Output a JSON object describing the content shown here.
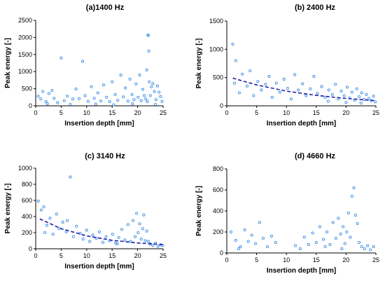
{
  "colors": {
    "points": "#3d8fe6",
    "fit": "#1f1fa8",
    "axis": "#000000"
  },
  "chart_data": [
    {
      "type": "scatter",
      "title": "(a)1400 Hz",
      "xlabel": "Insertion depth [mm]",
      "ylabel": "Peak energy [-]",
      "xlim": [
        0,
        25
      ],
      "ylim": [
        0,
        2500
      ],
      "xticks": [
        "0",
        "5",
        "10",
        "15",
        "20",
        "25"
      ],
      "yticks": [
        "0",
        "500",
        "1000",
        "1500",
        "2000",
        "2500"
      ],
      "grid": false,
      "has_fit": false,
      "points": [
        [
          0.5,
          280
        ],
        [
          1.0,
          200
        ],
        [
          1.4,
          420
        ],
        [
          2.0,
          120
        ],
        [
          2.6,
          360
        ],
        [
          3.2,
          450
        ],
        [
          3.6,
          220
        ],
        [
          4.3,
          90
        ],
        [
          5.0,
          1400
        ],
        [
          5.6,
          150
        ],
        [
          6.2,
          280
        ],
        [
          7.3,
          200
        ],
        [
          7.9,
          490
        ],
        [
          8.5,
          210
        ],
        [
          9.2,
          1300
        ],
        [
          9.7,
          300
        ],
        [
          10.3,
          130
        ],
        [
          10.9,
          560
        ],
        [
          11.5,
          220
        ],
        [
          12.2,
          380
        ],
        [
          12.8,
          140
        ],
        [
          13.3,
          610
        ],
        [
          13.9,
          250
        ],
        [
          14.5,
          120
        ],
        [
          15.0,
          700
        ],
        [
          15.6,
          330
        ],
        [
          16.1,
          160
        ],
        [
          16.7,
          900
        ],
        [
          17.2,
          260
        ],
        [
          17.6,
          520
        ],
        [
          18.1,
          140
        ],
        [
          18.5,
          780
        ],
        [
          18.9,
          330
        ],
        [
          19.3,
          180
        ],
        [
          19.7,
          640
        ],
        [
          20.1,
          250
        ],
        [
          20.4,
          900
        ],
        [
          20.7,
          150
        ],
        [
          21.0,
          480
        ],
        [
          21.3,
          300
        ],
        [
          21.6,
          200
        ],
        [
          21.8,
          1050
        ],
        [
          21.9,
          120
        ],
        [
          22.0,
          2070
        ],
        [
          22.1,
          2060
        ],
        [
          22.2,
          1600
        ],
        [
          22.3,
          700
        ],
        [
          22.5,
          300
        ],
        [
          22.7,
          560
        ],
        [
          23.0,
          650
        ],
        [
          23.3,
          420
        ],
        [
          23.6,
          180
        ],
        [
          23.9,
          580
        ],
        [
          24.2,
          400
        ],
        [
          24.5,
          270
        ],
        [
          24.8,
          130
        ],
        [
          2.3,
          60
        ],
        [
          6.8,
          40
        ],
        [
          11.8,
          50
        ],
        [
          15.3,
          30
        ],
        [
          19.0,
          60
        ],
        [
          23.5,
          40
        ]
      ]
    },
    {
      "type": "scatter",
      "title": "(b) 2400 Hz",
      "xlabel": "Insertion depth [mm]",
      "ylabel": "Peak energy [-]",
      "xlim": [
        0,
        25
      ],
      "ylim": [
        0,
        1500
      ],
      "xticks": [
        "0",
        "5",
        "10",
        "15",
        "20",
        "25"
      ],
      "yticks": [
        "0",
        "500",
        "1000",
        "1500"
      ],
      "grid": false,
      "has_fit": true,
      "fit_points": [
        [
          1,
          490
        ],
        [
          5,
          370
        ],
        [
          10,
          260
        ],
        [
          15,
          185
        ],
        [
          20,
          130
        ],
        [
          25,
          90
        ]
      ],
      "points": [
        [
          1.0,
          1090
        ],
        [
          1.5,
          800
        ],
        [
          1.3,
          400
        ],
        [
          2.1,
          230
        ],
        [
          2.6,
          560
        ],
        [
          3.4,
          350
        ],
        [
          3.9,
          620
        ],
        [
          4.5,
          180
        ],
        [
          5.2,
          430
        ],
        [
          5.8,
          280
        ],
        [
          6.5,
          380
        ],
        [
          7.1,
          520
        ],
        [
          7.6,
          150
        ],
        [
          8.3,
          400
        ],
        [
          8.9,
          240
        ],
        [
          9.6,
          470
        ],
        [
          10.2,
          310
        ],
        [
          10.8,
          120
        ],
        [
          11.4,
          550
        ],
        [
          12.0,
          280
        ],
        [
          12.7,
          390
        ],
        [
          13.3,
          180
        ],
        [
          14.0,
          300
        ],
        [
          14.6,
          520
        ],
        [
          15.2,
          220
        ],
        [
          15.9,
          340
        ],
        [
          16.5,
          150
        ],
        [
          17.1,
          280
        ],
        [
          17.7,
          200
        ],
        [
          18.2,
          380
        ],
        [
          18.7,
          120
        ],
        [
          19.2,
          260
        ],
        [
          19.7,
          180
        ],
        [
          20.2,
          330
        ],
        [
          20.6,
          140
        ],
        [
          21.0,
          240
        ],
        [
          21.4,
          100
        ],
        [
          21.8,
          300
        ],
        [
          22.2,
          160
        ],
        [
          22.6,
          230
        ],
        [
          23.0,
          110
        ],
        [
          23.4,
          200
        ],
        [
          23.8,
          130
        ],
        [
          24.2,
          90
        ],
        [
          24.6,
          170
        ],
        [
          24.9,
          70
        ],
        [
          20.0,
          60
        ],
        [
          22.5,
          50
        ],
        [
          17.0,
          80
        ]
      ]
    },
    {
      "type": "scatter",
      "title": "(c) 3140 Hz",
      "xlabel": "Insertion depth [mm]",
      "ylabel": "Peak energy [-]",
      "xlim": [
        0,
        25
      ],
      "ylim": [
        0,
        1000
      ],
      "xticks": [
        "0",
        "5",
        "10",
        "15",
        "20",
        "25"
      ],
      "yticks": [
        "0",
        "200",
        "400",
        "600",
        "800",
        "1000"
      ],
      "grid": false,
      "has_fit": true,
      "fit_points": [
        [
          0.8,
          370
        ],
        [
          5,
          250
        ],
        [
          10,
          160
        ],
        [
          15,
          105
        ],
        [
          20,
          72
        ],
        [
          25,
          52
        ]
      ],
      "points": [
        [
          0.5,
          590
        ],
        [
          1.1,
          480
        ],
        [
          1.6,
          520
        ],
        [
          2.2,
          290
        ],
        [
          2.8,
          380
        ],
        [
          3.4,
          180
        ],
        [
          4.1,
          430
        ],
        [
          4.6,
          250
        ],
        [
          5.3,
          330
        ],
        [
          6.0,
          210
        ],
        [
          6.8,
          890
        ],
        [
          7.4,
          150
        ],
        [
          8.0,
          280
        ],
        [
          8.7,
          190
        ],
        [
          9.3,
          120
        ],
        [
          10.0,
          230
        ],
        [
          10.6,
          90
        ],
        [
          11.2,
          170
        ],
        [
          11.9,
          130
        ],
        [
          12.5,
          210
        ],
        [
          13.2,
          80
        ],
        [
          13.8,
          150
        ],
        [
          14.5,
          100
        ],
        [
          15.1,
          180
        ],
        [
          15.7,
          70
        ],
        [
          16.3,
          140
        ],
        [
          16.9,
          240
        ],
        [
          17.5,
          110
        ],
        [
          18.1,
          300
        ],
        [
          18.6,
          90
        ],
        [
          19.1,
          350
        ],
        [
          19.5,
          150
        ],
        [
          19.8,
          440
        ],
        [
          20.1,
          200
        ],
        [
          20.4,
          310
        ],
        [
          20.7,
          120
        ],
        [
          21.0,
          250
        ],
        [
          21.2,
          420
        ],
        [
          21.5,
          100
        ],
        [
          21.8,
          220
        ],
        [
          22.1,
          90
        ],
        [
          22.5,
          60
        ],
        [
          23.0,
          40
        ],
        [
          23.5,
          70
        ],
        [
          24.0,
          30
        ],
        [
          24.5,
          50
        ],
        [
          24.9,
          40
        ],
        [
          1.8,
          200
        ],
        [
          6.2,
          350
        ],
        [
          16.0,
          60
        ]
      ]
    },
    {
      "type": "scatter",
      "title": "(d) 4660 Hz",
      "xlabel": "Insertion depth [mm]",
      "ylabel": "Peak energy [-]",
      "xlim": [
        0,
        25
      ],
      "ylim": [
        0,
        800
      ],
      "xticks": [
        "0",
        "5",
        "10",
        "15",
        "20",
        "25"
      ],
      "yticks": [
        "0",
        "200",
        "400",
        "600",
        "800"
      ],
      "grid": false,
      "has_fit": false,
      "points": [
        [
          0.7,
          200
        ],
        [
          1.5,
          120
        ],
        [
          2.3,
          60
        ],
        [
          3.0,
          220
        ],
        [
          3.6,
          110
        ],
        [
          4.2,
          170
        ],
        [
          4.8,
          90
        ],
        [
          5.5,
          290
        ],
        [
          6.1,
          140
        ],
        [
          6.8,
          60
        ],
        [
          7.5,
          160
        ],
        [
          8.2,
          100
        ],
        [
          11.5,
          70
        ],
        [
          12.3,
          40
        ],
        [
          13.0,
          150
        ],
        [
          13.7,
          80
        ],
        [
          14.4,
          190
        ],
        [
          15.0,
          100
        ],
        [
          15.6,
          250
        ],
        [
          16.2,
          130
        ],
        [
          16.8,
          200
        ],
        [
          17.3,
          80
        ],
        [
          17.8,
          290
        ],
        [
          18.3,
          140
        ],
        [
          18.7,
          330
        ],
        [
          19.1,
          180
        ],
        [
          19.5,
          250
        ],
        [
          19.8,
          90
        ],
        [
          20.1,
          200
        ],
        [
          20.4,
          380
        ],
        [
          20.7,
          150
        ],
        [
          21.0,
          540
        ],
        [
          21.3,
          620
        ],
        [
          21.6,
          360
        ],
        [
          21.9,
          280
        ],
        [
          22.2,
          100
        ],
        [
          22.6,
          60
        ],
        [
          23.1,
          40
        ],
        [
          23.6,
          70
        ],
        [
          24.1,
          30
        ],
        [
          24.6,
          60
        ],
        [
          2.0,
          40
        ],
        [
          16.5,
          60
        ],
        [
          19.3,
          40
        ]
      ]
    }
  ]
}
